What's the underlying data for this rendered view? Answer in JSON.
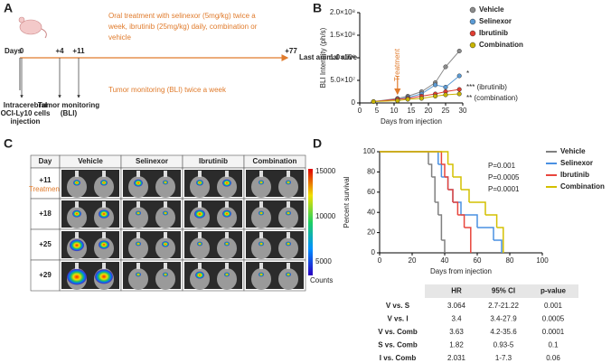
{
  "panel_labels": [
    "A",
    "B",
    "C",
    "D"
  ],
  "timeline": {
    "days_label": "Days",
    "day_ticks": [
      "0",
      "+4",
      "+11",
      "+77"
    ],
    "treatment": [
      "Oral treatment with selinexor (5mg/kg) twice a",
      "week, ibrutinib (25mg/kg) daily, combination or",
      "vehicle"
    ],
    "monitoring": "Tumor monitoring (BLI) twice a week",
    "end": "Last animal alive",
    "injection": [
      "Intracerebral",
      "OCI-Ly10 cells",
      "injection"
    ],
    "tumor_monitoring": [
      "Tumor monitoring",
      "(BLI)"
    ]
  },
  "imaging": {
    "header": [
      "Day",
      "Vehicle",
      "Selinexor",
      "Ibrutinib",
      "Combination"
    ],
    "days": [
      "+11",
      "+18",
      "+25",
      "+29"
    ],
    "treatment": "Treatment",
    "colorbar_ticks": [
      "15000",
      "10000",
      "5000"
    ],
    "colorbar_unit": "Counts"
  },
  "hr_table": {
    "header": [
      "HR",
      "95% CI",
      "p-value"
    ],
    "rows": [
      [
        "V vs. S",
        "3.064",
        "2.7-21.22",
        "0.001"
      ],
      [
        "V vs. I",
        "3.4",
        "3.4-27.9",
        "0.0005"
      ],
      [
        "V vs. Comb",
        "3.63",
        "4.2-35.6",
        "0.0001"
      ],
      [
        "S vs. Comb",
        "1.82",
        "0.93-5",
        "0.1"
      ],
      [
        "I vs. Comb",
        "2.031",
        "1-7.3",
        "0.06"
      ]
    ]
  },
  "chart_data": [
    {
      "type": "line",
      "x_label": "Days from injection",
      "y_label": "BLI Intensity (ph/s)",
      "x": [
        4,
        11,
        14,
        18,
        22,
        25,
        29
      ],
      "xlim": [
        0,
        30
      ],
      "xticks": [
        0,
        5,
        10,
        15,
        20,
        25,
        30
      ],
      "ylim": [
        0,
        200000000
      ],
      "yticks": [
        0,
        {
          "value": 50000000,
          "label": "5.0×10⁷"
        },
        {
          "value": 100000000,
          "label": "1.0×10⁸"
        },
        {
          "value": 150000000,
          "label": "1.5×10⁸"
        },
        {
          "value": 200000000,
          "label": "2.0×10⁸"
        }
      ],
      "series": [
        {
          "name": "Vehicle",
          "color": "#8c8c8c",
          "values": [
            3000000,
            10000000,
            15000000,
            25000000,
            45000000,
            80000000,
            115000000
          ]
        },
        {
          "name": "Selinexor",
          "color": "#5b9bd5",
          "values": [
            3000000,
            8000000,
            12000000,
            20000000,
            40000000,
            35000000,
            60000000
          ]
        },
        {
          "name": "Ibrutinib",
          "color": "#e03c31",
          "values": [
            3000000,
            8000000,
            10000000,
            15000000,
            20000000,
            25000000,
            30000000
          ]
        },
        {
          "name": "Combination",
          "color": "#c8b400",
          "values": [
            3000000,
            5000000,
            8000000,
            10000000,
            15000000,
            18000000,
            20000000
          ]
        }
      ],
      "annotations": [
        "Treatment",
        "*",
        "*** (ibrutinib)",
        "** (combination)"
      ]
    },
    {
      "type": "step",
      "x_label": "Days from injection",
      "y_label": "Percent survival",
      "xlim": [
        0,
        100
      ],
      "xticks": [
        0,
        20,
        40,
        60,
        80,
        100
      ],
      "ylim": [
        0,
        100
      ],
      "yticks": [
        0,
        20,
        40,
        60,
        80,
        100
      ],
      "series": [
        {
          "name": "Vehicle",
          "color": "#808080",
          "x": [
            0,
            28,
            30,
            32,
            34,
            36,
            38,
            40
          ],
          "values": [
            100,
            100,
            87.5,
            75,
            50,
            37.5,
            12.5,
            0
          ]
        },
        {
          "name": "Selinexor",
          "color": "#4a90e2",
          "x": [
            0,
            33,
            36,
            38,
            42,
            45,
            50,
            60,
            70,
            75
          ],
          "values": [
            100,
            100,
            87.5,
            75,
            62.5,
            50,
            37.5,
            25,
            12.5,
            0
          ]
        },
        {
          "name": "Ibrutinib",
          "color": "#e8453c",
          "x": [
            0,
            35,
            38,
            40,
            42,
            45,
            48,
            52,
            56
          ],
          "values": [
            100,
            100,
            87.5,
            75,
            62.5,
            50,
            37.5,
            25,
            0
          ]
        },
        {
          "name": "Combination",
          "color": "#d4c000",
          "x": [
            0,
            38,
            42,
            45,
            50,
            55,
            65,
            72,
            76
          ],
          "values": [
            100,
            100,
            87.5,
            75,
            62.5,
            50,
            37.5,
            25,
            0
          ]
        }
      ],
      "p_values": [
        "P=0.001",
        "P=0.0005",
        "P=0.0001"
      ]
    }
  ]
}
